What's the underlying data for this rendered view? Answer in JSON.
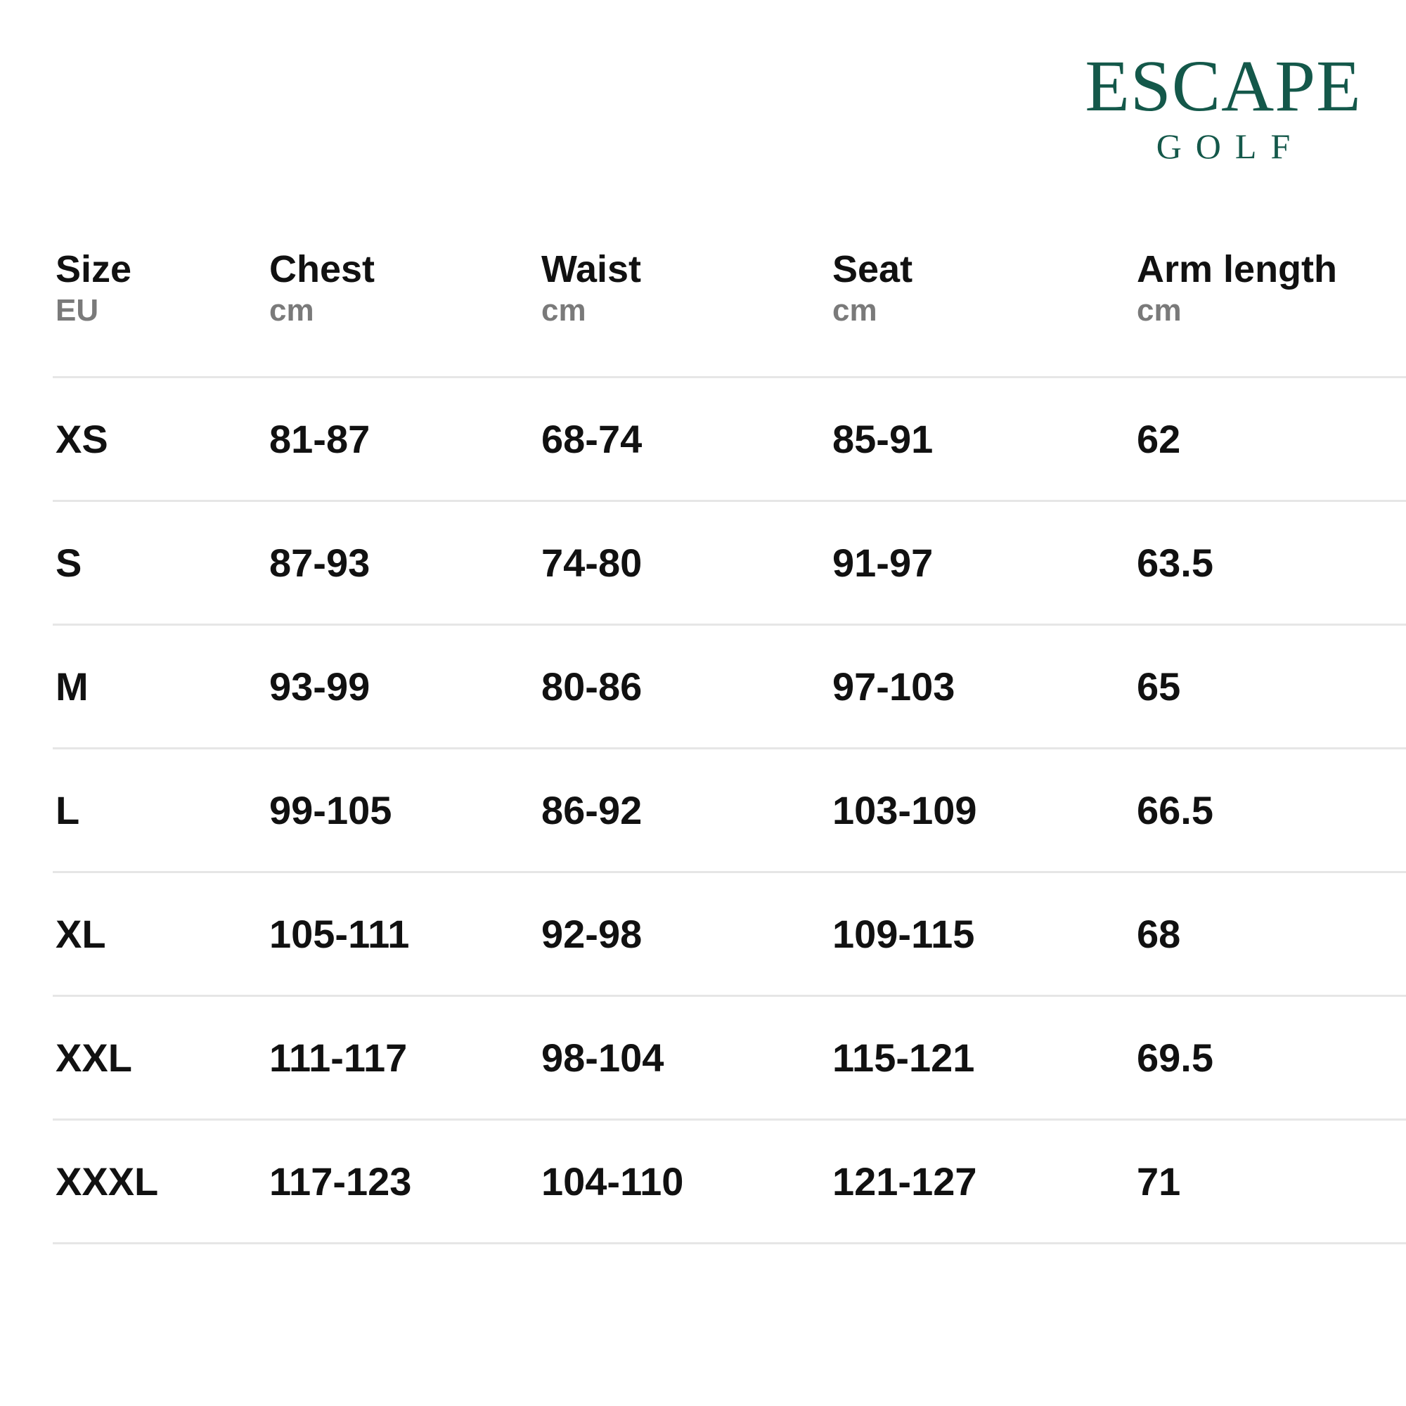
{
  "logo": {
    "line1": "ESCAPE",
    "line2": "GOLF",
    "color": "#14584a"
  },
  "columns": [
    {
      "title": "Size",
      "unit": "EU"
    },
    {
      "title": "Chest",
      "unit": "cm"
    },
    {
      "title": "Waist",
      "unit": "cm"
    },
    {
      "title": "Seat",
      "unit": "cm"
    },
    {
      "title": "Arm length",
      "unit": "cm"
    }
  ],
  "rows": [
    [
      "XS",
      "81-87",
      "68-74",
      "85-91",
      "62"
    ],
    [
      "S",
      "87-93",
      "74-80",
      "91-97",
      "63.5"
    ],
    [
      "M",
      "93-99",
      "80-86",
      "97-103",
      "65"
    ],
    [
      "L",
      "99-105",
      "86-92",
      "103-109",
      "66.5"
    ],
    [
      "XL",
      "105-111",
      "92-98",
      "109-115",
      "68"
    ],
    [
      "XXL",
      "111-117",
      "98-104",
      "115-121",
      "69.5"
    ],
    [
      "XXXL",
      "117-123",
      "104-110",
      "121-127",
      "71"
    ]
  ]
}
